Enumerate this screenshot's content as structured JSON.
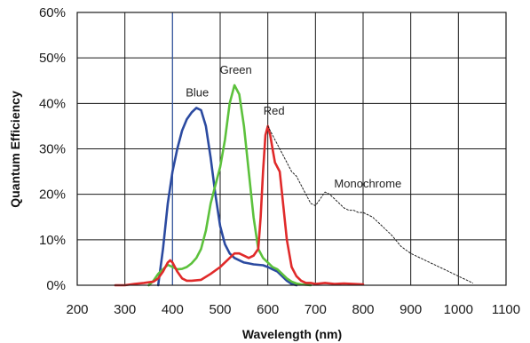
{
  "chart_data": {
    "type": "line",
    "title": "",
    "xlabel": "Wavelength (nm)",
    "ylabel": "Quantum Efficiency",
    "xlim": [
      200,
      1100
    ],
    "ylim": [
      0,
      60
    ],
    "grid": true,
    "x_ticks": [
      "200",
      "300",
      "400",
      "500",
      "600",
      "700",
      "800",
      "900",
      "1000",
      "1100"
    ],
    "y_ticks": [
      "0%",
      "10%",
      "20%",
      "30%",
      "40%",
      "50%",
      "60%"
    ],
    "reference_line_x": 400,
    "series": [
      {
        "name": "Blue",
        "color": "#2b4aa0",
        "style": "solid",
        "x": [
          370,
          380,
          390,
          400,
          410,
          420,
          430,
          440,
          450,
          460,
          470,
          480,
          490,
          500,
          510,
          520,
          530,
          540,
          550,
          560,
          570,
          580,
          590,
          600,
          610,
          620,
          630,
          640,
          650,
          660
        ],
        "y": [
          0,
          8,
          18,
          25,
          30,
          34,
          36.5,
          38,
          39,
          38.5,
          35,
          28,
          20,
          13,
          9,
          7,
          6,
          5.5,
          5,
          4.8,
          4.6,
          4.5,
          4.4,
          4,
          3.5,
          3,
          2,
          1,
          0.3,
          0
        ]
      },
      {
        "name": "Green",
        "color": "#5cc13c",
        "style": "solid",
        "x": [
          350,
          360,
          370,
          380,
          390,
          400,
          410,
          420,
          430,
          440,
          450,
          460,
          470,
          480,
          490,
          500,
          510,
          520,
          530,
          540,
          550,
          560,
          570,
          580,
          590,
          600,
          610,
          620,
          630,
          640,
          650,
          660,
          670,
          680,
          690
        ],
        "y": [
          0,
          1,
          2.5,
          3.5,
          4.5,
          4,
          3.5,
          3.6,
          4,
          4.8,
          6,
          8,
          12,
          18,
          22,
          26,
          32,
          40,
          44,
          42,
          35,
          25,
          15,
          8,
          6,
          5,
          4,
          3.5,
          2.5,
          1.5,
          0.8,
          0.4,
          0.2,
          0.1,
          0
        ]
      },
      {
        "name": "Red",
        "color": "#e02a2a",
        "style": "solid",
        "x": [
          280,
          300,
          320,
          340,
          360,
          370,
          380,
          390,
          395,
          400,
          410,
          420,
          430,
          440,
          460,
          480,
          500,
          520,
          530,
          540,
          550,
          560,
          570,
          580,
          585,
          590,
          595,
          600,
          605,
          610,
          615,
          620,
          625,
          630,
          640,
          650,
          660,
          670,
          680,
          690,
          700,
          720,
          740,
          760,
          780,
          800
        ],
        "y": [
          0,
          0,
          0.3,
          0.5,
          0.8,
          1.5,
          3,
          5,
          5.5,
          5,
          3,
          1.5,
          1,
          1,
          1.2,
          2.5,
          4,
          6,
          7,
          7,
          6.5,
          6,
          6.5,
          8,
          15,
          25,
          33,
          35,
          33,
          30,
          27,
          26,
          25,
          20,
          10,
          4,
          2,
          1,
          0.5,
          0.5,
          0.3,
          0.5,
          0.3,
          0.4,
          0.3,
          0.2
        ]
      },
      {
        "name": "Monochrome",
        "color": "#222222",
        "style": "dotted",
        "x": [
          600,
          610,
          620,
          630,
          640,
          650,
          660,
          670,
          680,
          690,
          700,
          710,
          720,
          730,
          740,
          750,
          760,
          770,
          780,
          790,
          800,
          820,
          840,
          860,
          880,
          900,
          920,
          940,
          960,
          980,
          1000,
          1020,
          1030
        ],
        "y": [
          35,
          33,
          31,
          29,
          27,
          25,
          24,
          22,
          20,
          18,
          17.5,
          19,
          20.5,
          20,
          19,
          18,
          17,
          16.5,
          16.5,
          16,
          16,
          15,
          13,
          11,
          8.5,
          7,
          6,
          5,
          4,
          3,
          2,
          1,
          0.5
        ]
      }
    ]
  }
}
